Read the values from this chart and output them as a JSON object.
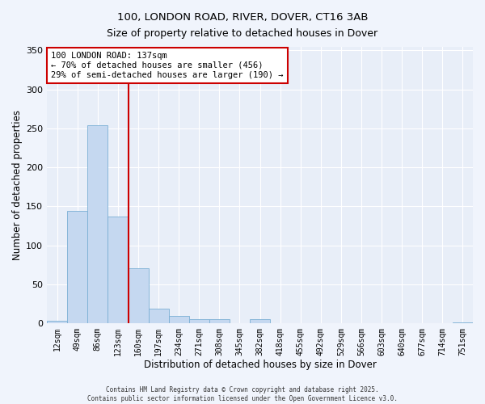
{
  "title": "100, LONDON ROAD, RIVER, DOVER, CT16 3AB",
  "subtitle": "Size of property relative to detached houses in Dover",
  "xlabel": "Distribution of detached houses by size in Dover",
  "ylabel": "Number of detached properties",
  "bin_labels": [
    "12sqm",
    "49sqm",
    "86sqm",
    "123sqm",
    "160sqm",
    "197sqm",
    "234sqm",
    "271sqm",
    "308sqm",
    "345sqm",
    "382sqm",
    "418sqm",
    "455sqm",
    "492sqm",
    "529sqm",
    "566sqm",
    "603sqm",
    "640sqm",
    "677sqm",
    "714sqm",
    "751sqm"
  ],
  "bar_values": [
    3,
    144,
    254,
    137,
    71,
    19,
    10,
    5,
    5,
    0,
    5,
    0,
    0,
    0,
    0,
    0,
    0,
    0,
    0,
    0,
    1
  ],
  "bar_color": "#c5d8f0",
  "bar_edge_color": "#7aafd4",
  "vline_x": 3.5,
  "vline_color": "#cc0000",
  "ylim": [
    0,
    355
  ],
  "yticks": [
    0,
    50,
    100,
    150,
    200,
    250,
    300,
    350
  ],
  "annotation_text": "100 LONDON ROAD: 137sqm\n← 70% of detached houses are smaller (456)\n29% of semi-detached houses are larger (190) →",
  "annotation_box_color": "#ffffff",
  "annotation_box_edge_color": "#cc0000",
  "footer_line1": "Contains HM Land Registry data © Crown copyright and database right 2025.",
  "footer_line2": "Contains public sector information licensed under the Open Government Licence v3.0.",
  "bg_color": "#f0f4fc",
  "plot_bg_color": "#e8eef8",
  "grid_color": "#ffffff",
  "title_fontsize": 9.5,
  "subtitle_fontsize": 9,
  "xlabel_fontsize": 8.5,
  "ylabel_fontsize": 8.5,
  "tick_fontsize": 7,
  "annot_fontsize": 7.5,
  "footer_fontsize": 5.5
}
